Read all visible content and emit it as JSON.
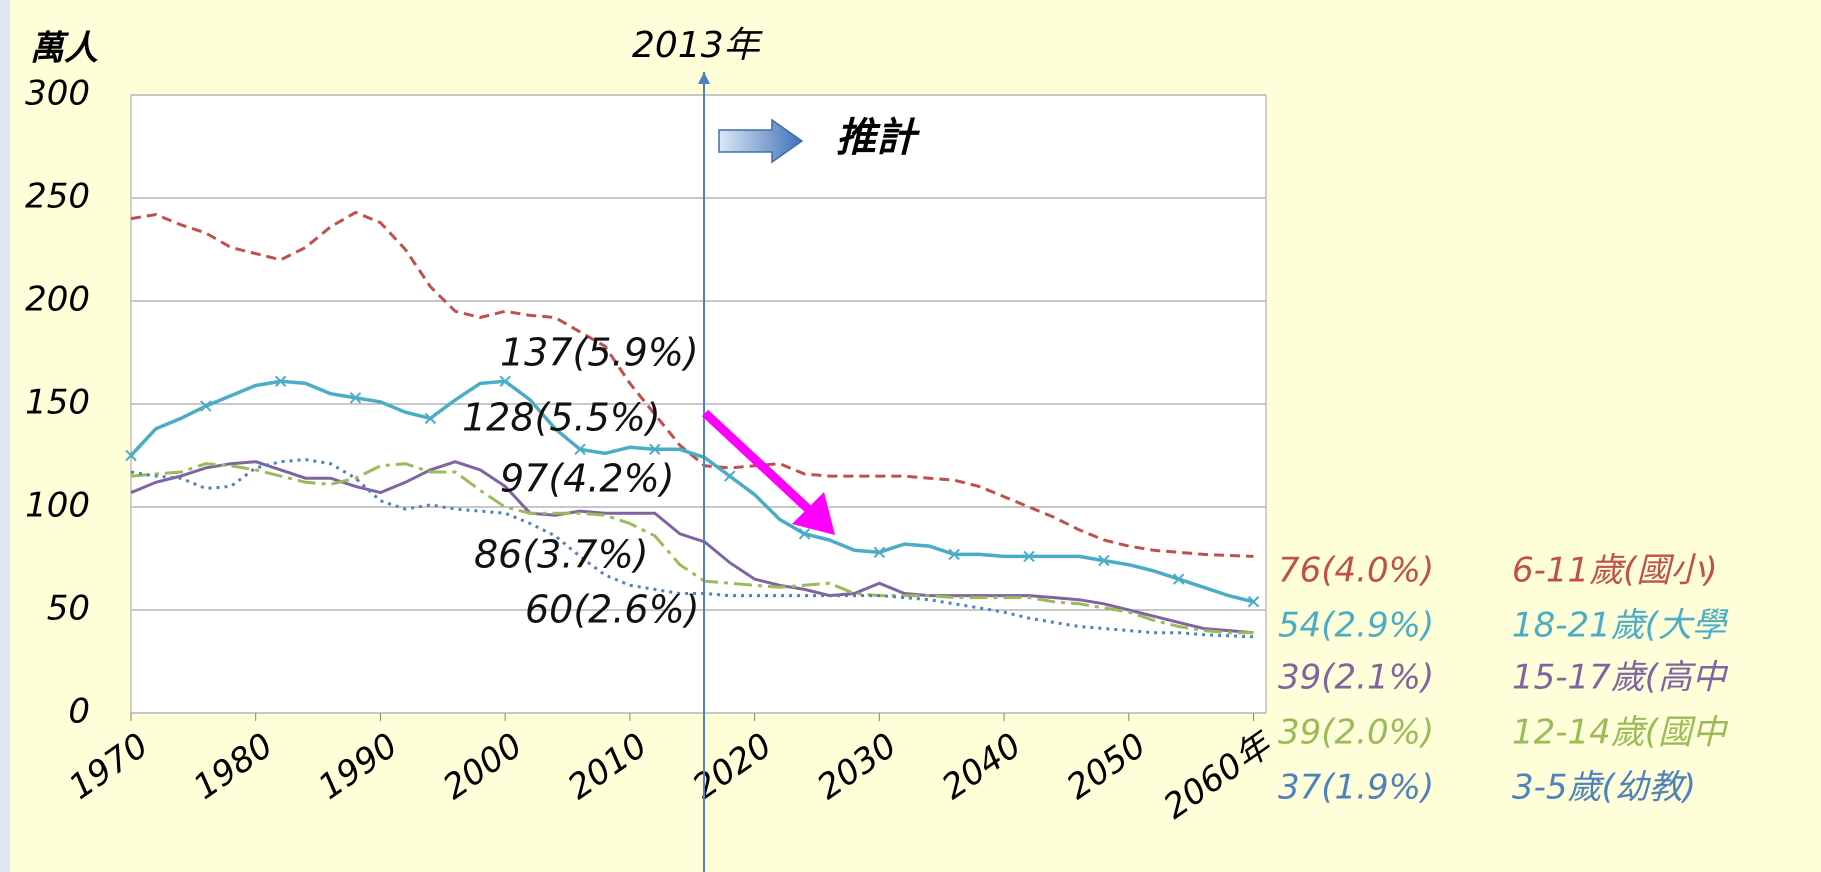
{
  "chart_data": {
    "type": "line",
    "ylabel": "萬人",
    "x": [
      1970,
      1972,
      1974,
      1976,
      1978,
      1980,
      1982,
      1984,
      1986,
      1988,
      1990,
      1992,
      1994,
      1996,
      1998,
      2000,
      2002,
      2004,
      2006,
      2008,
      2010,
      2012,
      2014,
      2016,
      2018,
      2020,
      2022,
      2024,
      2026,
      2028,
      2030,
      2032,
      2034,
      2036,
      2038,
      2040,
      2042,
      2044,
      2046,
      2048,
      2050,
      2052,
      2054,
      2056,
      2058,
      2060
    ],
    "xlim": [
      1970,
      2061
    ],
    "xticks": [
      1970,
      1980,
      1990,
      2000,
      2010,
      2020,
      2030,
      2040,
      2050,
      {
        "value": 2060,
        "label": "2060年"
      }
    ],
    "ylim": [
      0,
      300
    ],
    "yticks": [
      0,
      50,
      100,
      150,
      200,
      250,
      300
    ],
    "grid": true,
    "series": [
      {
        "name": "6-11歲(國小)",
        "end_label": "76(4.0%)",
        "color": "#c0504d",
        "style": "dashed",
        "values": [
          240,
          242,
          237,
          233,
          226,
          223,
          220,
          226,
          236,
          243,
          238,
          225,
          207,
          195,
          192,
          195,
          193,
          192,
          185,
          178,
          160,
          145,
          130,
          120,
          119,
          120,
          121,
          116,
          115,
          115,
          115,
          115,
          114,
          113,
          110,
          105,
          100,
          95,
          89,
          84,
          81,
          79,
          78,
          77,
          76.5,
          76
        ]
      },
      {
        "name": "18-21歲(大學",
        "end_label": "54(2.9%)",
        "color": "#4bacc6",
        "style": "solid-x",
        "values": [
          125,
          138,
          143,
          149,
          154,
          159,
          161,
          160,
          155,
          153,
          151,
          146,
          143,
          152,
          160,
          161,
          152,
          138,
          128,
          126,
          129,
          128,
          128,
          124,
          115,
          106,
          94,
          87,
          84,
          79,
          78,
          82,
          81,
          77,
          77,
          76,
          76,
          76,
          76,
          74,
          72,
          69,
          65,
          61,
          57,
          54
        ]
      },
      {
        "name": "15-17歲(高中",
        "end_label": "39(2.1%)",
        "color": "#8064a2",
        "style": "solid",
        "values": [
          107,
          112,
          115,
          119,
          121,
          122,
          118,
          114,
          114,
          110,
          107,
          112,
          118,
          122,
          118,
          110,
          97,
          96,
          98,
          97,
          97,
          97,
          87,
          83,
          73,
          65,
          62,
          60,
          57,
          58,
          63,
          58,
          57,
          57,
          57,
          57,
          57,
          56,
          55,
          53,
          50,
          47,
          44,
          41,
          40,
          39
        ]
      },
      {
        "name": "12-14歲(國中",
        "end_label": "39(2.0%)",
        "color": "#9bbb59",
        "style": "dashdot",
        "values": [
          115,
          116,
          117,
          121,
          120,
          118,
          115,
          112,
          111,
          114,
          120,
          121,
          117,
          117,
          108,
          100,
          97,
          97,
          97,
          96,
          92,
          86,
          72,
          64,
          63,
          62,
          61,
          62,
          63,
          58,
          57,
          57,
          57,
          56,
          56,
          56,
          56,
          54,
          53,
          51,
          49,
          45,
          42,
          40,
          39,
          39
        ]
      },
      {
        "name": "3-5歲(幼教)",
        "end_label": "37(1.9%)",
        "color": "#4f81bd",
        "style": "dotted",
        "values": [
          117,
          115,
          114,
          109,
          110,
          119,
          122,
          123,
          121,
          114,
          103,
          99,
          101,
          99,
          98,
          97,
          92,
          86,
          76,
          67,
          62,
          60,
          58,
          58,
          57,
          57,
          57,
          57,
          57,
          57,
          57,
          56,
          55,
          53,
          51,
          49,
          46,
          44,
          42,
          41,
          40,
          39,
          39,
          38,
          37.5,
          37
        ]
      }
    ],
    "annotations": [
      "137(5.9%)",
      "128(5.5%)",
      "97(4.2%)",
      "86(3.7%)",
      "60(2.6%)"
    ],
    "projection_label": "推計",
    "divider_label": "2013年"
  }
}
